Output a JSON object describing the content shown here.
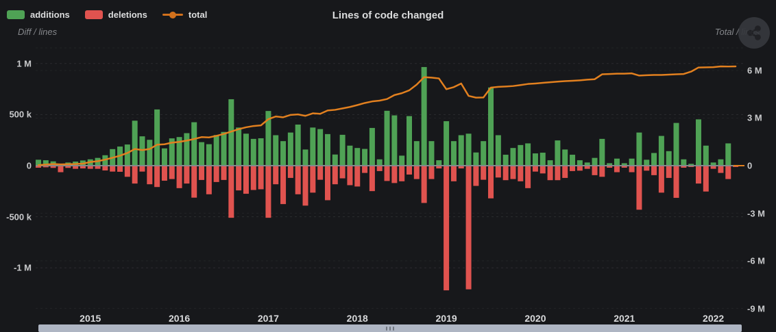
{
  "header": {
    "title": "Lines of code changed",
    "left_axis_title": "Diff / lines",
    "right_axis_title": "Total / lines",
    "legend": [
      {
        "label": "additions",
        "marker": "box",
        "color": "#4fa255"
      },
      {
        "label": "deletions",
        "marker": "box",
        "color": "#e0534f"
      },
      {
        "label": "total",
        "marker": "line-dot",
        "color": "#d2711c"
      }
    ]
  },
  "colors": {
    "background": "#17181b",
    "additions": "#4fa255",
    "deletions": "#e0534f",
    "total_line": "#e2801f",
    "zero_line": "#85888c",
    "scrollbar": "#aeb5c3",
    "axis_text": "#c9cacc",
    "muted_text": "#85878b"
  },
  "chart_data": {
    "type": "bar",
    "subtype": "monthly diff bars with cumulative total line",
    "title": "Lines of code changed",
    "x": [
      "2014-06",
      "2014-07",
      "2014-08",
      "2014-09",
      "2014-10",
      "2014-11",
      "2014-12",
      "2015-01",
      "2015-02",
      "2015-03",
      "2015-04",
      "2015-05",
      "2015-06",
      "2015-07",
      "2015-08",
      "2015-09",
      "2015-10",
      "2015-11",
      "2015-12",
      "2016-01",
      "2016-02",
      "2016-03",
      "2016-04",
      "2016-05",
      "2016-06",
      "2016-07",
      "2016-08",
      "2016-09",
      "2016-10",
      "2016-11",
      "2016-12",
      "2017-01",
      "2017-02",
      "2017-03",
      "2017-04",
      "2017-05",
      "2017-06",
      "2017-07",
      "2017-08",
      "2017-09",
      "2017-10",
      "2017-11",
      "2017-12",
      "2018-01",
      "2018-02",
      "2018-03",
      "2018-04",
      "2018-05",
      "2018-06",
      "2018-07",
      "2018-08",
      "2018-09",
      "2018-10",
      "2018-11",
      "2018-12",
      "2019-01",
      "2019-02",
      "2019-03",
      "2019-04",
      "2019-05",
      "2019-06",
      "2019-07",
      "2019-08",
      "2019-09",
      "2019-10",
      "2019-11",
      "2019-12",
      "2020-01",
      "2020-02",
      "2020-03",
      "2020-04",
      "2020-05",
      "2020-06",
      "2020-07",
      "2020-08",
      "2020-09",
      "2020-10",
      "2020-11",
      "2020-12",
      "2021-01",
      "2021-02",
      "2021-03",
      "2021-04",
      "2021-05",
      "2021-06",
      "2021-07",
      "2021-08",
      "2021-09",
      "2021-10",
      "2021-11",
      "2021-12",
      "2022-01",
      "2022-02",
      "2022-03",
      "2022-04"
    ],
    "x_tick_labels": [
      "2015",
      "2016",
      "2017",
      "2018",
      "2019",
      "2020",
      "2021",
      "2022"
    ],
    "series": [
      {
        "name": "additions",
        "type": "bar",
        "color": "#4fa255",
        "unit": "thousand lines",
        "values_k": [
          58,
          53,
          42,
          13,
          31,
          40,
          51,
          62,
          76,
          102,
          162,
          187,
          207,
          440,
          287,
          253,
          550,
          169,
          267,
          280,
          318,
          425,
          230,
          210,
          300,
          330,
          650,
          373,
          313,
          262,
          268,
          535,
          298,
          240,
          324,
          402,
          158,
          373,
          358,
          309,
          109,
          302,
          196,
          173,
          164,
          369,
          62,
          537,
          492,
          98,
          485,
          240,
          965,
          240,
          53,
          435,
          240,
          298,
          313,
          129,
          240,
          765,
          298,
          107,
          173,
          202,
          218,
          120,
          127,
          53,
          247,
          158,
          107,
          53,
          31,
          76,
          262,
          24,
          69,
          24,
          69,
          324,
          58,
          124,
          291,
          142,
          418,
          62,
          18,
          453,
          196,
          31,
          62,
          218,
          7
        ]
      },
      {
        "name": "deletions",
        "type": "bar",
        "color": "#e0534f",
        "unit": "thousand lines",
        "values_k": [
          -20,
          -16,
          -22,
          -64,
          -22,
          -31,
          -27,
          -31,
          -31,
          -47,
          -58,
          -60,
          -109,
          -175,
          -58,
          -182,
          -209,
          -147,
          -131,
          -220,
          -175,
          -313,
          -140,
          -280,
          -160,
          -140,
          -510,
          -242,
          -275,
          -238,
          -231,
          -510,
          -182,
          -376,
          -120,
          -280,
          -391,
          -264,
          -138,
          -338,
          -182,
          -124,
          -191,
          -204,
          -71,
          -249,
          -53,
          -150,
          -170,
          -153,
          -87,
          -131,
          -365,
          -131,
          -27,
          -1220,
          -153,
          -27,
          -1210,
          -198,
          -138,
          -320,
          -116,
          -142,
          -131,
          -153,
          -220,
          -58,
          -76,
          -142,
          -142,
          -120,
          -53,
          -49,
          -31,
          -93,
          -109,
          -20,
          -64,
          -20,
          -64,
          -431,
          -49,
          -93,
          -264,
          -120,
          -315,
          -20,
          -13,
          -175,
          -253,
          -31,
          -71,
          -131,
          -13
        ]
      },
      {
        "name": "total",
        "type": "line",
        "color": "#e2801f",
        "unit": "million lines",
        "values_M": [
          0.03,
          0.07,
          0.1,
          0.08,
          0.09,
          0.1,
          0.13,
          0.23,
          0.28,
          0.38,
          0.5,
          0.63,
          0.8,
          1.05,
          0.98,
          1.05,
          1.32,
          1.35,
          1.45,
          1.5,
          1.58,
          1.68,
          1.8,
          1.78,
          1.88,
          2.0,
          2.15,
          2.3,
          2.42,
          2.5,
          2.54,
          2.93,
          3.1,
          3.05,
          3.2,
          3.23,
          3.14,
          3.3,
          3.27,
          3.48,
          3.52,
          3.61,
          3.7,
          3.82,
          3.95,
          4.05,
          4.1,
          4.2,
          4.45,
          4.57,
          4.75,
          5.11,
          5.58,
          5.55,
          5.5,
          4.82,
          4.95,
          5.18,
          4.4,
          4.29,
          4.3,
          4.92,
          4.97,
          4.99,
          5.02,
          5.08,
          5.15,
          5.18,
          5.22,
          5.26,
          5.3,
          5.33,
          5.35,
          5.38,
          5.42,
          5.45,
          5.76,
          5.78,
          5.8,
          5.8,
          5.82,
          5.68,
          5.7,
          5.72,
          5.72,
          5.74,
          5.76,
          5.78,
          5.93,
          6.19,
          6.2,
          6.21,
          6.26,
          6.25,
          6.26
        ]
      }
    ],
    "left_axis": {
      "title": "Diff / lines",
      "tick_labels": [
        "1 M",
        "500 k",
        "0",
        "-500 k",
        "-1 M"
      ],
      "tick_values_k": [
        1000,
        500,
        0,
        -500,
        -1000
      ],
      "approx_range_k": [
        -1430,
        1150
      ]
    },
    "right_axis": {
      "title": "Total / lines",
      "tick_labels": [
        "6 M",
        "3 M",
        "0",
        "-3 M",
        "-6 M",
        "-9 M"
      ],
      "tick_values_M": [
        6,
        3,
        0,
        -3,
        -6,
        -9
      ],
      "approx_range_M": [
        -9.2,
        7.4
      ]
    },
    "grid": "dashed horizontal gridlines for both axes",
    "legend_position": "top-left"
  },
  "scrollbar": {
    "kind": "horizontal",
    "full_width": true,
    "handle_dots": 3
  }
}
